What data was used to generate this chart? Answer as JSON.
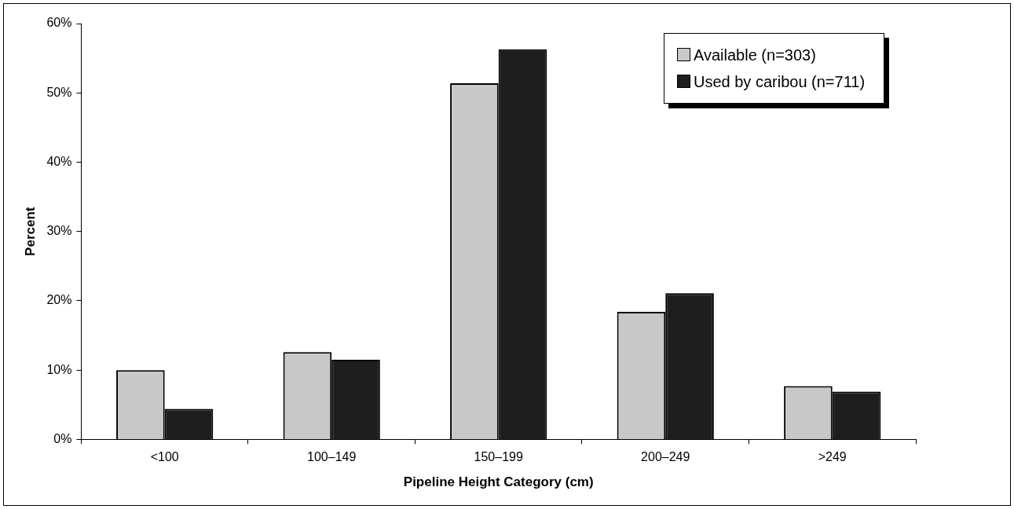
{
  "chart_data": {
    "type": "bar",
    "xlabel": "Pipeline Height Category (cm)",
    "ylabel": "Percent",
    "categories": [
      "<100",
      "100–149",
      "150–199",
      "200–249",
      ">249"
    ],
    "series": [
      {
        "name": "Available (n=303)",
        "color": "#c8c8c8",
        "values": [
          10.0,
          12.6,
          51.4,
          18.4,
          7.7
        ]
      },
      {
        "name": "Used by caribou (n=711)",
        "color": "#1e1e1e",
        "values": [
          4.4,
          11.5,
          56.3,
          21.1,
          6.9
        ]
      }
    ],
    "ylim": [
      0,
      60
    ],
    "yticks": [
      {
        "value": 0,
        "label": "0%"
      },
      {
        "value": 10,
        "label": "10%"
      },
      {
        "value": 20,
        "label": "20%"
      },
      {
        "value": 30,
        "label": "30%"
      },
      {
        "value": 40,
        "label": "40%"
      },
      {
        "value": 50,
        "label": "50%"
      },
      {
        "value": 60,
        "label": "60%"
      }
    ],
    "legend": "top right"
  }
}
